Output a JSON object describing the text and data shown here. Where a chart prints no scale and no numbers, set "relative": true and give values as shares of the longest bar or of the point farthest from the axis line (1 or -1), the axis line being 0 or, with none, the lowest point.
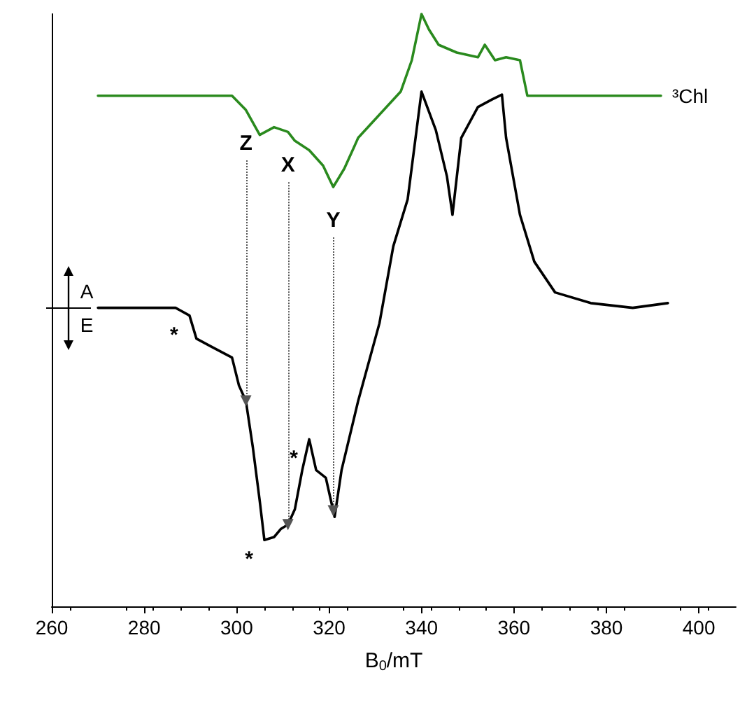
{
  "chart_data": {
    "type": "line",
    "relative": true,
    "xlabel": "B$_{0}$/mT",
    "xlim": [
      260,
      408
    ],
    "xticks": [
      260,
      280,
      300,
      320,
      340,
      360,
      380,
      400
    ],
    "legend": false,
    "grid": false,
    "marker": "none",
    "line_style": "solid",
    "series": [
      {
        "name": "³Chl",
        "color": "#2a8a1e",
        "x": [
          270.0,
          299.0,
          302.0,
          305.0,
          308.1,
          311.1,
          312.6,
          315.7,
          318.7,
          320.9,
          323.3,
          326.3,
          330.9,
          335.5,
          337.9,
          340.0,
          341.6,
          343.7,
          347.6,
          352.2,
          353.7,
          355.9,
          358.3,
          361.3,
          362.9,
          391.8
        ],
        "values": [
          0.862,
          0.862,
          0.838,
          0.796,
          0.809,
          0.801,
          0.786,
          0.77,
          0.744,
          0.708,
          0.739,
          0.791,
          0.83,
          0.869,
          0.922,
          1.0,
          0.974,
          0.948,
          0.935,
          0.927,
          0.948,
          0.922,
          0.927,
          0.922,
          0.862,
          0.862
        ]
      },
      {
        "color": "#000000",
        "x": [
          270.0,
          279.2,
          286.8,
          289.8,
          291.3,
          294.4,
          299.0,
          300.5,
          302.0,
          303.5,
          305.0,
          306.0,
          308.1,
          309.6,
          311.1,
          312.6,
          314.2,
          315.7,
          317.2,
          319.3,
          321.2,
          322.7,
          326.3,
          330.9,
          333.9,
          337.0,
          340.0,
          343.1,
          345.5,
          346.7,
          348.6,
          352.2,
          355.3,
          357.4,
          358.3,
          361.3,
          364.4,
          368.9,
          376.6,
          385.7,
          393.3
        ],
        "values": [
          0.504,
          0.504,
          0.504,
          0.491,
          0.452,
          0.439,
          0.42,
          0.373,
          0.347,
          0.269,
          0.178,
          0.112,
          0.117,
          0.131,
          0.138,
          0.164,
          0.23,
          0.282,
          0.23,
          0.217,
          0.151,
          0.23,
          0.347,
          0.478,
          0.608,
          0.687,
          0.869,
          0.804,
          0.726,
          0.661,
          0.791,
          0.843,
          0.856,
          0.864,
          0.791,
          0.661,
          0.582,
          0.53,
          0.512,
          0.504,
          0.512
        ]
      }
    ],
    "annotations": [
      {
        "text": "Z",
        "x": 302.0,
        "y": 0.838
      },
      {
        "text": "X",
        "x": 311.1,
        "y": 0.801
      },
      {
        "text": "Y",
        "x": 320.9,
        "y": 0.708
      },
      {
        "text": "*",
        "x": 289.8,
        "y": 0.491
      },
      {
        "text": "*",
        "x": 306.0,
        "y": 0.112
      },
      {
        "text": "*",
        "x": 315.7,
        "y": 0.282
      },
      "A",
      "E"
    ]
  }
}
